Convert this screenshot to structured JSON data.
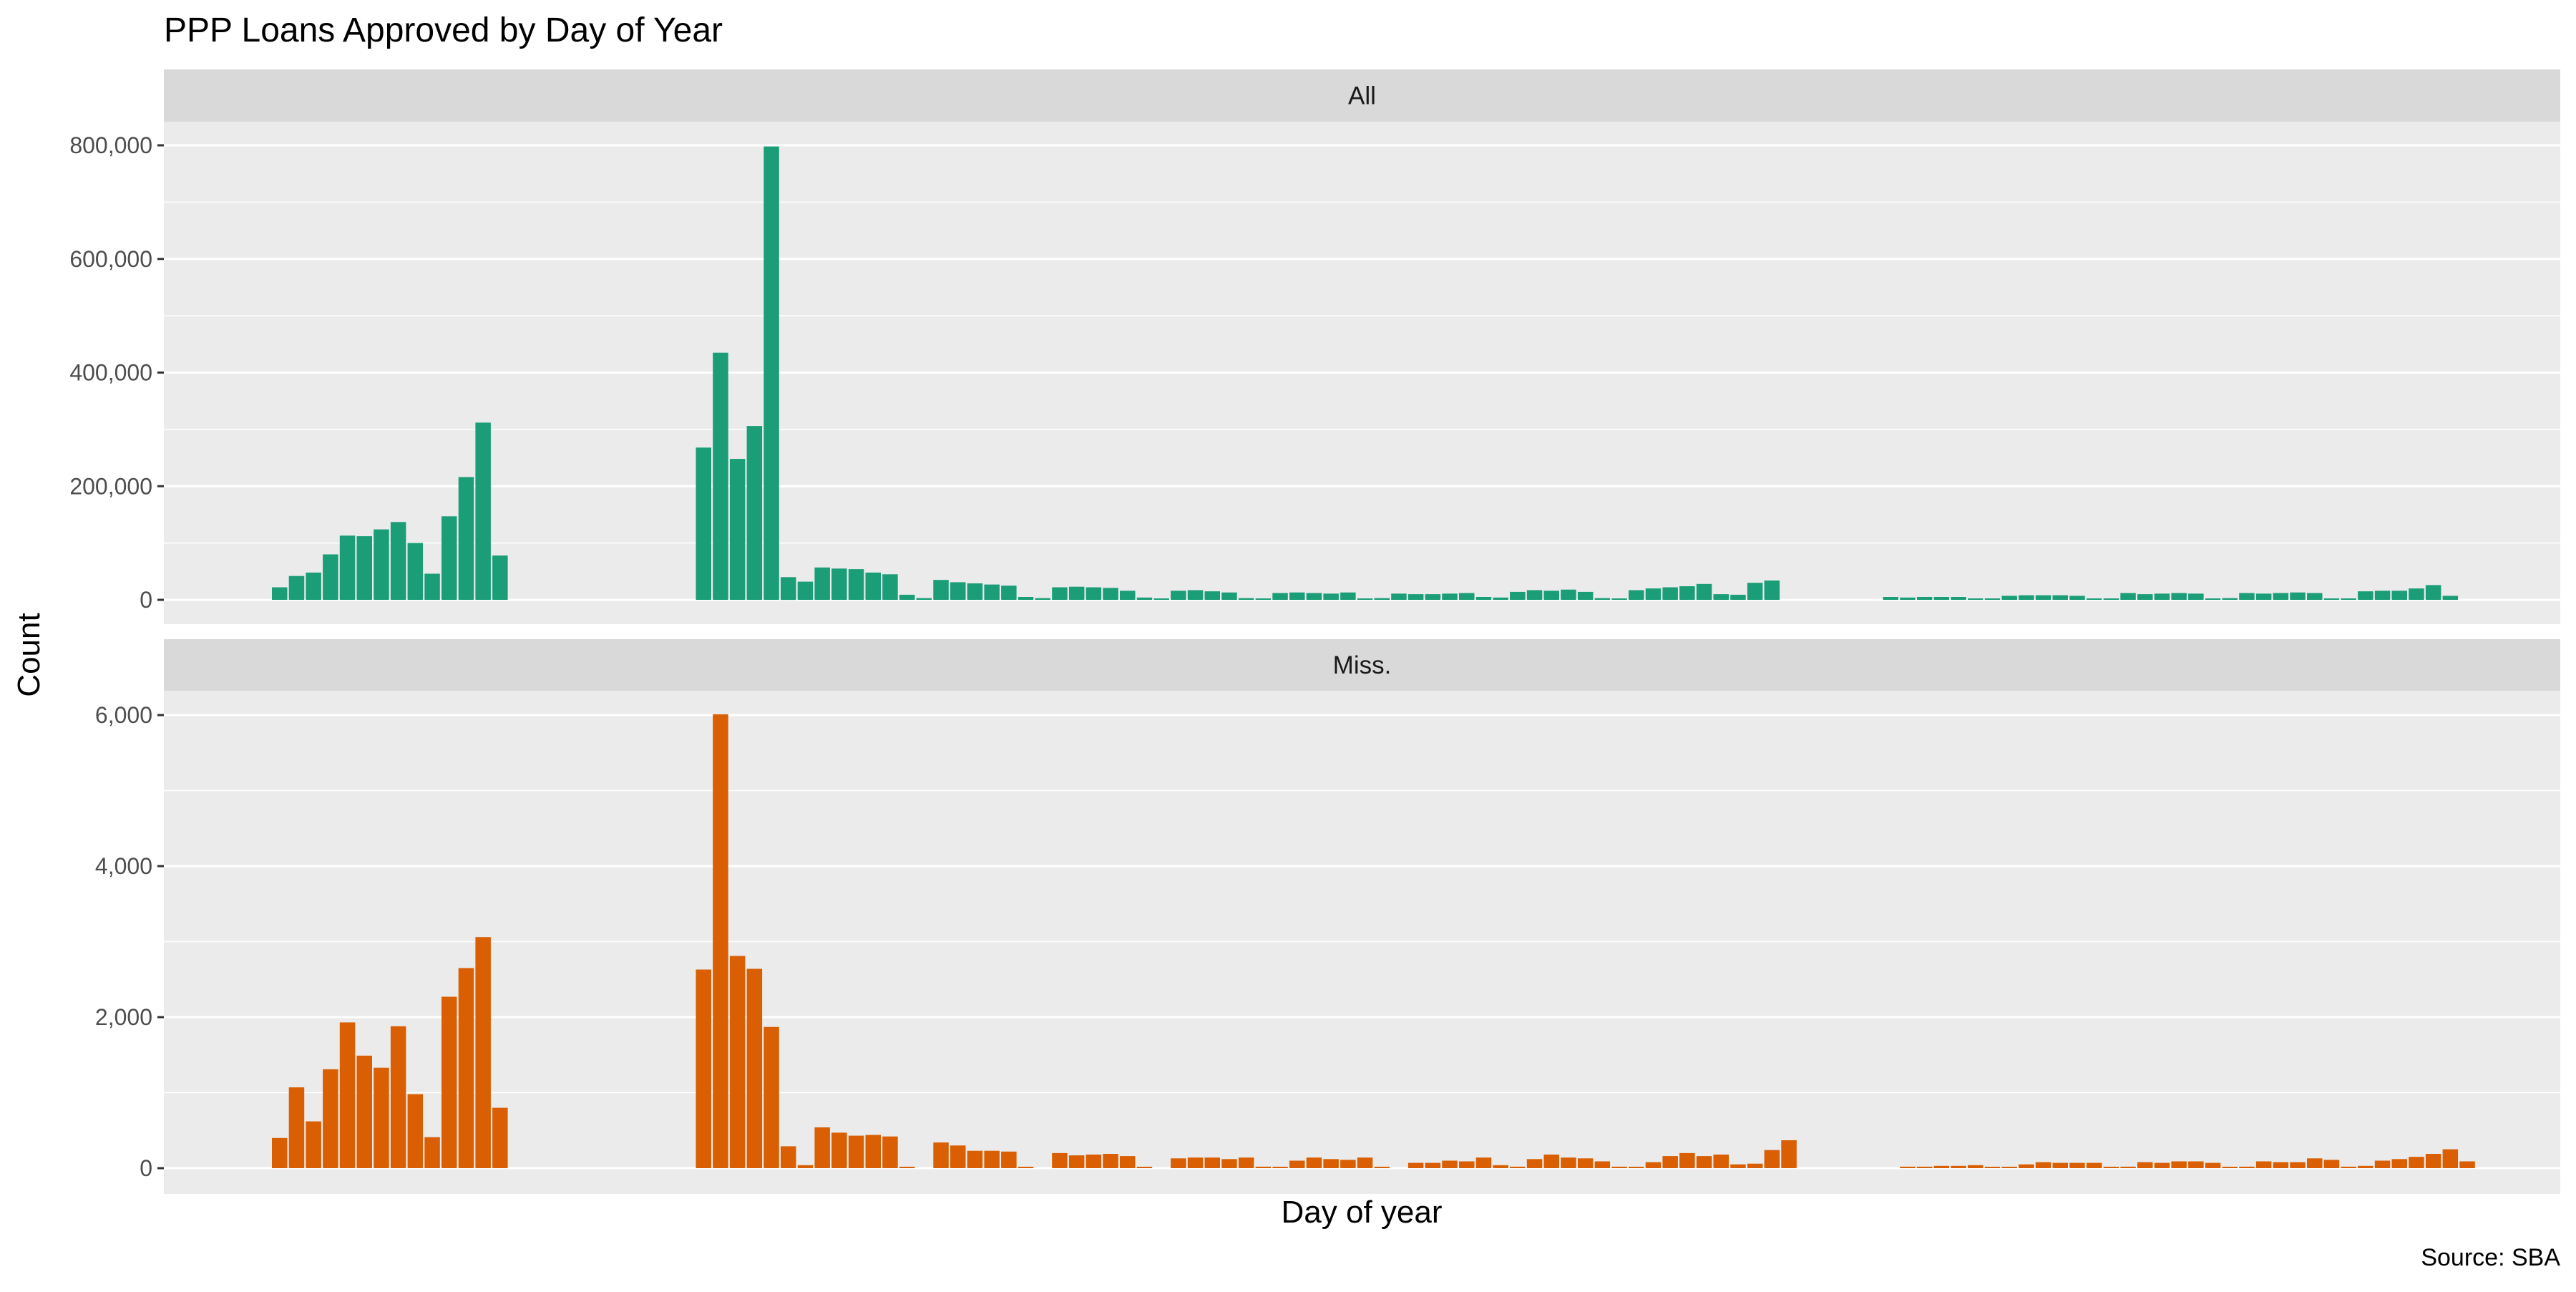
{
  "chart_data": {
    "type": "bar",
    "title": "PPP Loans Approved by Day of Year",
    "xlabel": "Day of year",
    "ylabel": "Count",
    "caption": "Source: SBA",
    "grid": true,
    "legend": "none",
    "colors": {
      "All": "#1b9e77",
      "Miss.": "#d95f02",
      "panel_bg": "#ebebeb",
      "strip_bg": "#d9d9d9",
      "grid": "#ffffff"
    },
    "facets": [
      {
        "name": "All",
        "ylim": [
          0,
          800000
        ],
        "yticks": [
          0,
          200000,
          400000,
          600000,
          800000
        ],
        "ytick_labels": [
          "0",
          "200,000",
          "400,000",
          "600,000",
          "800,000"
        ],
        "values": [
          22000,
          42000,
          48000,
          80000,
          113000,
          112000,
          124000,
          137000,
          100000,
          46000,
          147000,
          216000,
          312000,
          78000,
          0,
          0,
          0,
          0,
          0,
          0,
          0,
          0,
          0,
          0,
          0,
          268000,
          435000,
          248000,
          306000,
          798000,
          40000,
          32000,
          57000,
          55000,
          54000,
          48000,
          45000,
          9000,
          3000,
          35000,
          31000,
          29000,
          27000,
          25000,
          5000,
          3000,
          22000,
          23000,
          22000,
          21000,
          16000,
          4000,
          2000,
          16000,
          17000,
          15000,
          13000,
          3000,
          2000,
          12000,
          13000,
          12000,
          11000,
          13000,
          2000,
          3000,
          11000,
          10000,
          10000,
          11000,
          12000,
          5000,
          4000,
          14000,
          17000,
          16000,
          18000,
          14000,
          3000,
          2000,
          17000,
          20000,
          22000,
          24000,
          28000,
          10000,
          9000,
          30000,
          34000,
          0,
          0,
          0,
          0,
          0,
          0,
          5000,
          4000,
          5000,
          5000,
          5000,
          1000,
          1000,
          7000,
          8000,
          8000,
          8000,
          7000,
          1000,
          2000,
          12000,
          10000,
          11000,
          12000,
          11000,
          2000,
          3000,
          12000,
          11000,
          12000,
          13000,
          12000,
          2000,
          2000,
          15000,
          16000,
          16000,
          20000,
          26000,
          7000
        ]
      },
      {
        "name": "Miss.",
        "ylim": [
          0,
          6000
        ],
        "yticks": [
          0,
          2000,
          4000,
          6000
        ],
        "ytick_labels": [
          "0",
          "2,000",
          "4,000",
          "6,000"
        ],
        "values": [
          400,
          1070,
          620,
          1310,
          1930,
          1490,
          1330,
          1880,
          980,
          410,
          2270,
          2650,
          3060,
          800,
          0,
          0,
          0,
          0,
          0,
          0,
          0,
          0,
          0,
          0,
          0,
          2630,
          6010,
          2810,
          2640,
          1870,
          290,
          40,
          540,
          470,
          430,
          440,
          420,
          10,
          0,
          340,
          300,
          230,
          230,
          220,
          10,
          0,
          200,
          170,
          180,
          190,
          160,
          10,
          0,
          130,
          140,
          140,
          120,
          140,
          20,
          10,
          100,
          140,
          120,
          110,
          140,
          10,
          0,
          70,
          70,
          100,
          90,
          140,
          40,
          20,
          120,
          180,
          140,
          130,
          90,
          20,
          10,
          80,
          160,
          200,
          160,
          180,
          50,
          60,
          240,
          370,
          0,
          0,
          0,
          0,
          0,
          0,
          20,
          20,
          30,
          30,
          40,
          10,
          10,
          50,
          80,
          70,
          70,
          70,
          10,
          20,
          80,
          70,
          90,
          90,
          70,
          10,
          20,
          90,
          80,
          80,
          130,
          110,
          20,
          30,
          100,
          120,
          150,
          190,
          250,
          90
        ]
      }
    ]
  }
}
